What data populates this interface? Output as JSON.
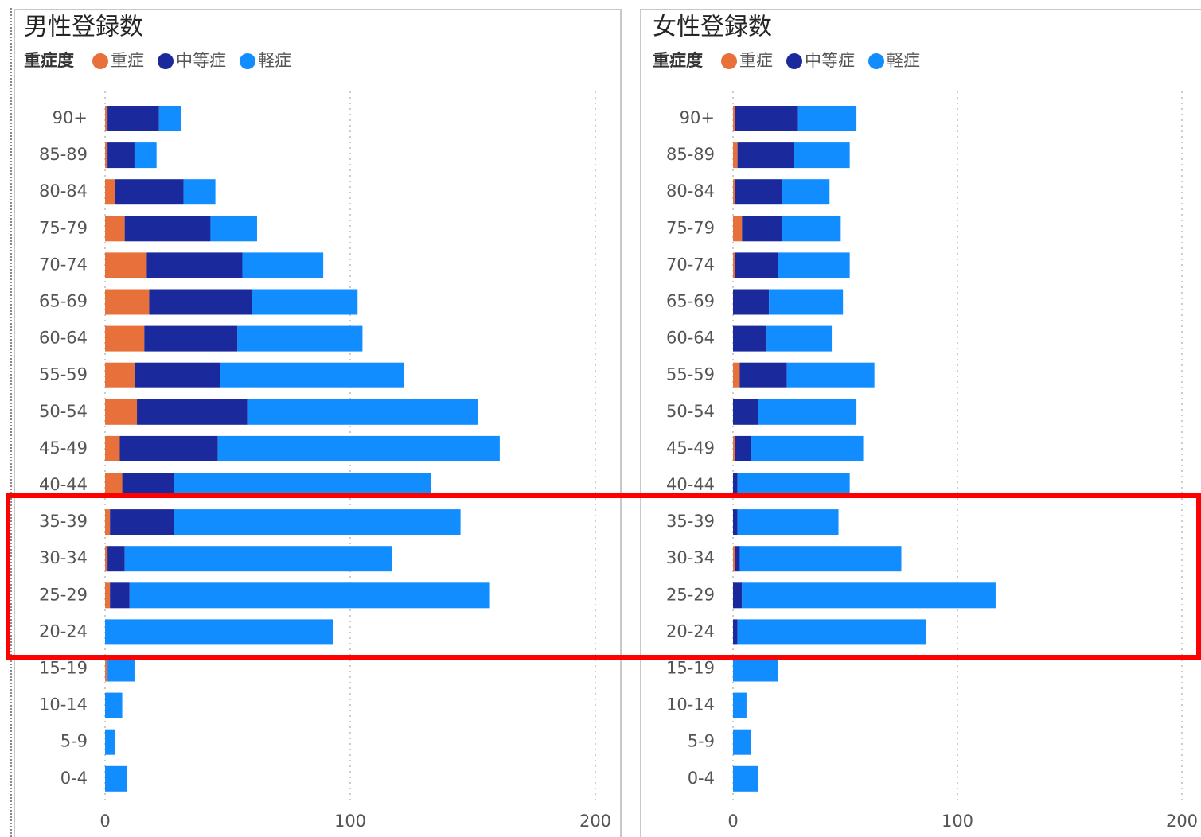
{
  "chart_data": [
    {
      "type": "bar",
      "orientation": "horizontal",
      "stacked": true,
      "title": "男性登録数",
      "legend_title": "重症度",
      "categories": [
        "90+",
        "85-89",
        "80-84",
        "75-79",
        "70-74",
        "65-69",
        "60-64",
        "55-59",
        "50-54",
        "45-49",
        "40-44",
        "35-39",
        "30-34",
        "25-29",
        "20-24",
        "15-19",
        "10-14",
        "5-9",
        "0-4"
      ],
      "series": [
        {
          "name": "重症",
          "color": "#e8703a",
          "values": [
            1,
            1,
            4,
            8,
            17,
            18,
            16,
            12,
            13,
            6,
            7,
            2,
            1,
            2,
            0,
            1,
            0,
            0,
            0
          ]
        },
        {
          "name": "中等症",
          "color": "#1a2a9c",
          "values": [
            21,
            11,
            28,
            35,
            39,
            42,
            38,
            35,
            45,
            40,
            21,
            26,
            7,
            8,
            0,
            0,
            0,
            0,
            0
          ]
        },
        {
          "name": "軽症",
          "color": "#118dff",
          "values": [
            9,
            9,
            13,
            19,
            33,
            43,
            51,
            75,
            94,
            115,
            105,
            117,
            109,
            147,
            93,
            11,
            7,
            4,
            9
          ]
        }
      ],
      "xlim": [
        0,
        200
      ],
      "xticks": [
        0,
        100,
        200
      ],
      "grid": true
    },
    {
      "type": "bar",
      "orientation": "horizontal",
      "stacked": true,
      "title": "女性登録数",
      "legend_title": "重症度",
      "categories": [
        "90+",
        "85-89",
        "80-84",
        "75-79",
        "70-74",
        "65-69",
        "60-64",
        "55-59",
        "50-54",
        "45-49",
        "40-44",
        "35-39",
        "30-34",
        "25-29",
        "20-24",
        "15-19",
        "10-14",
        "5-9",
        "0-4"
      ],
      "series": [
        {
          "name": "重症",
          "color": "#e8703a",
          "values": [
            1,
            2,
            1,
            4,
            1,
            0,
            0,
            3,
            0,
            1,
            0,
            0,
            1,
            0,
            0,
            0,
            0,
            0,
            0
          ]
        },
        {
          "name": "中等症",
          "color": "#1a2a9c",
          "values": [
            28,
            25,
            21,
            18,
            19,
            16,
            15,
            21,
            11,
            7,
            2,
            2,
            2,
            4,
            2,
            0,
            0,
            0,
            0
          ]
        },
        {
          "name": "軽症",
          "color": "#118dff",
          "values": [
            26,
            25,
            21,
            26,
            32,
            33,
            29,
            39,
            44,
            50,
            50,
            45,
            72,
            113,
            84,
            20,
            6,
            8,
            11
          ]
        }
      ],
      "xlim": [
        0,
        200
      ],
      "xticks": [
        0,
        100,
        200
      ],
      "grid": true
    }
  ]
}
